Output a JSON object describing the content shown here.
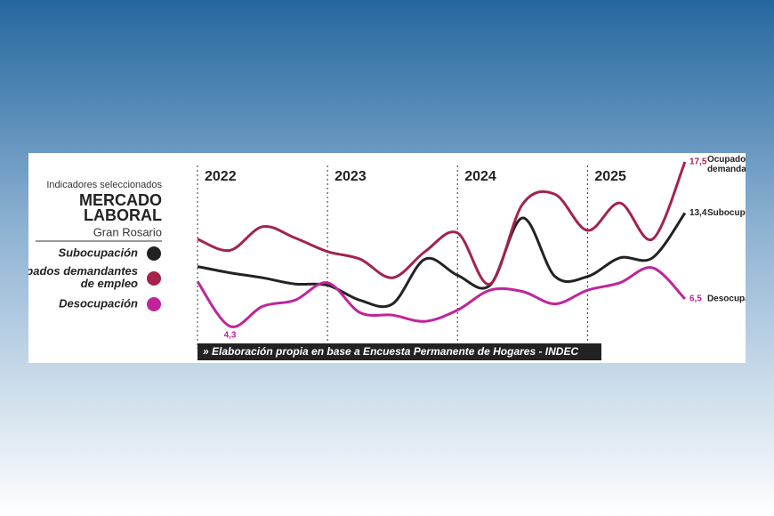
{
  "chart_data": {
    "type": "line",
    "header": {
      "kicker": "Indicadores seleccionados",
      "title": "MERCADO LABORAL",
      "subtitle": "Gran Rosario"
    },
    "source": "» Elaboración propia en base a Encuesta Permanente de Hogares - INDEC",
    "categories": [
      "2022",
      null,
      null,
      null,
      "2023",
      null,
      null,
      null,
      "2024",
      null,
      null,
      null,
      "2025",
      null,
      null,
      null
    ],
    "ylim": [
      3,
      18
    ],
    "series": [
      {
        "name": "Subocupación",
        "end_label": "Subocupación",
        "color": "#222222",
        "values": [
          9.1,
          8.6,
          8.2,
          7.7,
          7.6,
          6.4,
          6.1,
          9.7,
          8.4,
          7.6,
          13.0,
          8.3,
          8.3,
          9.8,
          9.8,
          13.4
        ],
        "value_labels": [
          null,
          null,
          null,
          null,
          null,
          null,
          null,
          null,
          null,
          null,
          null,
          null,
          null,
          null,
          null,
          "13,4"
        ]
      },
      {
        "name": "Ocupados demandantes de empleo",
        "end_label": "Ocupados demandantes",
        "color": "#a3234a",
        "values": [
          11.3,
          10.4,
          12.3,
          11.4,
          10.3,
          9.7,
          8.2,
          10.3,
          11.8,
          7.7,
          14.1,
          14.9,
          12.0,
          14.2,
          11.3,
          17.5
        ],
        "value_labels": [
          null,
          null,
          null,
          null,
          null,
          null,
          null,
          null,
          null,
          null,
          null,
          null,
          null,
          null,
          null,
          "17,5"
        ]
      },
      {
        "name": "Desocupación",
        "end_label": "Desocupación",
        "color": "#c0249a",
        "values": [
          7.9,
          4.3,
          5.9,
          6.4,
          7.8,
          5.4,
          5.2,
          4.7,
          5.6,
          7.2,
          7.1,
          6.1,
          7.2,
          7.8,
          9.0,
          6.5
        ],
        "value_labels": [
          null,
          "4,3",
          null,
          null,
          null,
          null,
          null,
          null,
          null,
          null,
          null,
          null,
          null,
          null,
          null,
          "6,5"
        ]
      }
    ]
  }
}
